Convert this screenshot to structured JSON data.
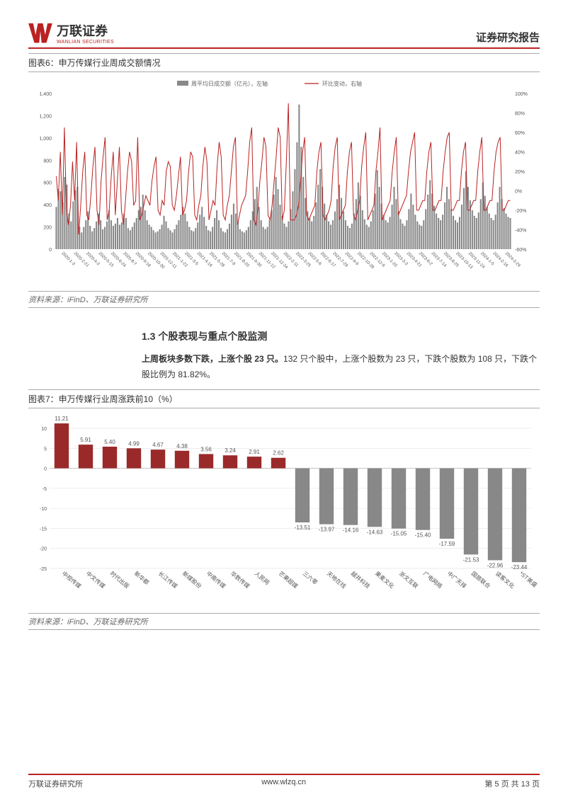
{
  "header": {
    "company_cn": "万联证券",
    "company_en": "WANLIAN SECURITIES",
    "doc_type": "证券研究报告"
  },
  "chart6": {
    "title": "图表6：申万传媒行业周成交额情况",
    "type": "bar+line",
    "legend_bar": "周平均日成交额（亿元），左轴",
    "legend_line": "环比变动，右轴",
    "y_left": {
      "min": 0,
      "max": 1400,
      "step": 200,
      "label_fontsize": 7,
      "color": "#555"
    },
    "y_right": {
      "min": -60,
      "max": 100,
      "step": 20,
      "label_fontsize": 7,
      "color": "#555",
      "suffix": "%"
    },
    "x_labels": [
      "2020-1-3",
      "2020-2-21",
      "2020-4-3",
      "2020-5-15",
      "2020-6-24",
      "2020-8-7",
      "2020-9-18",
      "2020-10-30",
      "2020-12-11",
      "2021-1-22",
      "2021-3-5",
      "2021-4-16",
      "2021-5-28",
      "2021-7-9",
      "2021-8-20",
      "2021-9-30",
      "2021-11-12",
      "2021-12-24",
      "2022-2-11",
      "2022-3-25",
      "2022-5-6",
      "2022-6-17",
      "2022-7-29",
      "2022-9-9",
      "2022-10-28",
      "2022-12-9",
      "2023-1-20",
      "2023-3-3",
      "2023-4-21",
      "2023-6-2",
      "2023-7-14",
      "2023-8-25",
      "2023-10-13",
      "2023-11-24",
      "2024-1-5",
      "2024-2-16",
      "2024-3-29"
    ],
    "bar_color": "#888888",
    "line_color": "#b22222",
    "background_color": "#ffffff",
    "bars": [
      380,
      540,
      520,
      420,
      650,
      580,
      320,
      250,
      430,
      530,
      560,
      200,
      150,
      200,
      260,
      340,
      210,
      160,
      190,
      250,
      320,
      260,
      180,
      200,
      250,
      350,
      260,
      210,
      230,
      280,
      220,
      240,
      320,
      280,
      190,
      170,
      200,
      240,
      280,
      350,
      380,
      490,
      350,
      260,
      220,
      200,
      170,
      150,
      160,
      180,
      220,
      300,
      250,
      190,
      170,
      150,
      180,
      220,
      260,
      310,
      380,
      320,
      250,
      200,
      170,
      160,
      190,
      240,
      310,
      380,
      290,
      210,
      170,
      160,
      200,
      280,
      350,
      260,
      190,
      160,
      150,
      180,
      230,
      310,
      410,
      320,
      240,
      180,
      160,
      150,
      170,
      200,
      260,
      340,
      450,
      560,
      380,
      260,
      200,
      180,
      200,
      260,
      350,
      490,
      650,
      540,
      400,
      300,
      230,
      200,
      250,
      360,
      520,
      720,
      960,
      1300,
      920,
      650,
      460,
      340,
      280,
      250,
      300,
      420,
      580,
      720,
      560,
      410,
      310,
      250,
      220,
      260,
      340,
      450,
      580,
      460,
      340,
      260,
      210,
      190,
      230,
      320,
      450,
      600,
      480,
      350,
      270,
      220,
      200,
      250,
      350,
      500,
      710,
      560,
      410,
      310,
      260,
      240,
      290,
      400,
      560,
      450,
      340,
      270,
      230,
      210,
      260,
      360,
      500,
      400,
      310,
      250,
      220,
      210,
      260,
      360,
      490,
      620,
      500,
      390,
      320,
      280,
      260,
      310,
      420,
      560,
      450,
      360,
      300,
      260,
      240,
      290,
      400,
      550,
      700,
      560,
      440,
      350,
      300,
      280,
      330,
      450,
      600,
      480,
      380,
      320,
      280,
      260,
      310,
      420,
      560,
      450,
      370,
      320,
      290,
      280
    ],
    "line": [
      15,
      -10,
      40,
      -25,
      65,
      -20,
      -35,
      -15,
      30,
      -10,
      50,
      -45,
      -15,
      20,
      40,
      -25,
      -30,
      -5,
      25,
      45,
      -20,
      -35,
      10,
      35,
      55,
      -30,
      -20,
      15,
      40,
      -25,
      10,
      45,
      -20,
      -35,
      -10,
      20,
      40,
      30,
      -15,
      -10,
      55,
      -30,
      -25,
      -15,
      -5,
      -10,
      -15,
      10,
      25,
      35,
      -20,
      -25,
      -10,
      -15,
      20,
      30,
      25,
      -15,
      -20,
      -5,
      15,
      35,
      -25,
      -20,
      -10,
      20,
      40,
      35,
      -25,
      -30,
      -15,
      -5,
      25,
      45,
      30,
      -30,
      -20,
      -10,
      -15,
      25,
      50,
      35,
      -25,
      -30,
      -15,
      -5,
      20,
      45,
      55,
      -35,
      -25,
      -15,
      -10,
      -5,
      20,
      50,
      65,
      -30,
      -35,
      -20,
      10,
      30,
      55,
      45,
      -25,
      -30,
      -15,
      10,
      35,
      65,
      55,
      -30,
      -20,
      30,
      90,
      -30,
      -30,
      -30,
      -25,
      -15,
      10,
      40,
      55,
      -25,
      -30,
      -25,
      -20,
      -15,
      20,
      40,
      50,
      -25,
      -30,
      -25,
      -20,
      -10,
      25,
      45,
      55,
      -30,
      -25,
      -20,
      -15,
      20,
      40,
      50,
      -25,
      -30,
      -20,
      -10,
      25,
      45,
      60,
      -30,
      -25,
      -20,
      -15,
      20,
      40,
      65,
      -30,
      -25,
      -20,
      -15,
      -10,
      20,
      40,
      55,
      -25,
      -20,
      -15,
      -10,
      -5,
      20,
      40,
      50,
      60,
      -20,
      -20,
      -15,
      -10,
      -10,
      20,
      40,
      50,
      -20,
      -20,
      -15,
      -10,
      -10,
      20,
      40,
      55,
      60,
      -20,
      -20,
      -15,
      -10,
      -10,
      20,
      40,
      50,
      -20,
      -20,
      -15,
      -10,
      -10,
      20,
      40,
      55,
      -20,
      -20,
      -15,
      -10,
      -10,
      20,
      40,
      50,
      55,
      -20,
      -20,
      -15,
      -10,
      -10
    ],
    "source": "资料来源：iFinD、万联证券研究所"
  },
  "section": {
    "heading": "1.3 个股表现与重点个股监测",
    "para_bold": "上周板块多数下跌，上涨个股 23 只。",
    "para_rest": "132 只个股中，上涨个股数为 23 只，下跌个股数为 108 只，下跌个股比例为 81.82%。"
  },
  "chart7": {
    "title": "图表7：申万传媒行业周涨跌前10（%）",
    "type": "bar",
    "y": {
      "min": -25,
      "max": 10,
      "step": 5,
      "label_fontsize": 8,
      "color": "#555"
    },
    "pos_color": "#9a2a2a",
    "neg_color": "#888888",
    "background_color": "#ffffff",
    "categories": [
      "中视传媒",
      "中文传媒",
      "时代出版",
      "新华都",
      "长江传媒",
      "新媒股份",
      "中南传媒",
      "华数传媒",
      "人民网",
      "芒果超媒",
      "三六零",
      "天地在线",
      "越井科技",
      "果麦文化",
      "浙文互联",
      "广电网络",
      "中广天择",
      "国旅联合",
      "读客文化",
      "*ST美盛"
    ],
    "values": [
      11.21,
      5.91,
      5.4,
      4.99,
      4.67,
      4.38,
      3.56,
      3.24,
      2.91,
      2.62,
      -13.51,
      -13.97,
      -14.16,
      -14.63,
      -15.05,
      -15.4,
      -17.59,
      -21.53,
      -22.96,
      -23.44
    ],
    "source": "资料来源：iFinD、万联证券研究所"
  },
  "footer": {
    "left": "万联证券研究所",
    "center": "www.wlzq.cn",
    "right": "第 5 页 共 13 页"
  }
}
